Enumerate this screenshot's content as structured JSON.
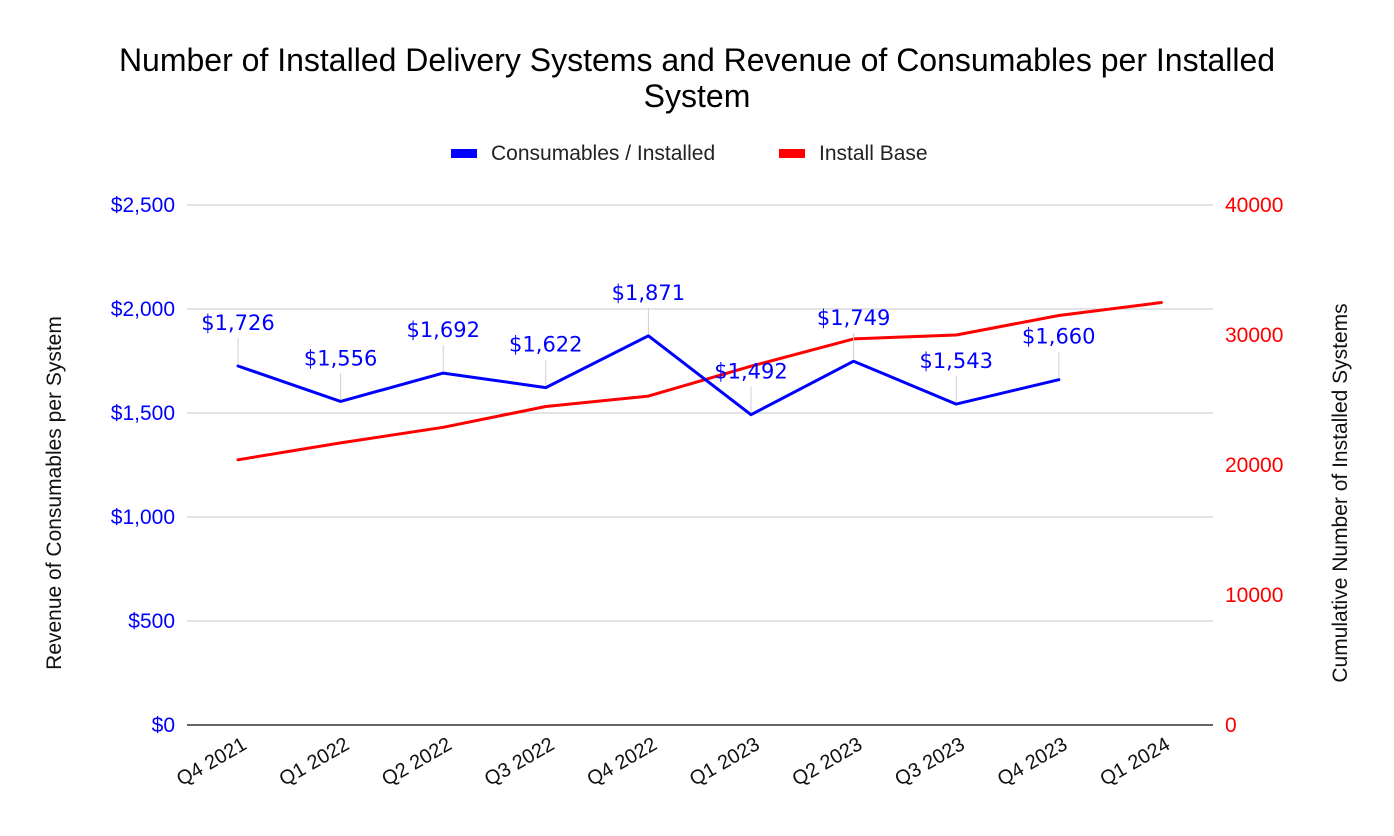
{
  "chart_data": {
    "type": "line",
    "title_line1": "Number of Installed Delivery Systems and Revenue of Consumables per Installed",
    "title_line2": "System",
    "categories": [
      "Q4 2021",
      "Q1 2022",
      "Q2 2022",
      "Q3 2022",
      "Q4 2022",
      "Q1 2023",
      "Q2 2023",
      "Q3 2023",
      "Q4 2023",
      "Q1 2024"
    ],
    "y_left": {
      "label": "Revenue of Consumables per System",
      "range": [
        0,
        2500
      ],
      "ticks": [
        0,
        500,
        1000,
        1500,
        2000,
        2500
      ],
      "tick_labels": [
        "$0",
        "$500",
        "$1,000",
        "$1,500",
        "$2,000",
        "$2,500"
      ],
      "color": "#0000ff"
    },
    "y_right": {
      "label": "Cumulative Number of Installed Systems",
      "range": [
        0,
        40000
      ],
      "ticks": [
        0,
        10000,
        20000,
        30000,
        40000
      ],
      "tick_labels": [
        "0",
        "10000",
        "20000",
        "30000",
        "40000"
      ],
      "color": "#ff0000"
    },
    "legend_position": "top-center",
    "grid": true,
    "series": [
      {
        "name": "Consumables / Installed",
        "axis": "left",
        "color": "#0000ff",
        "values": [
          1726,
          1556,
          1692,
          1622,
          1871,
          1492,
          1749,
          1543,
          1660,
          null
        ],
        "data_labels": [
          "$1,726",
          "$1,556",
          "$1,692",
          "$1,622",
          "$1,871",
          "$1,492",
          "$1,749",
          "$1,543",
          "$1,660",
          null
        ]
      },
      {
        "name": "Install Base",
        "axis": "right",
        "color": "#ff0000",
        "values": [
          20400,
          21700,
          22900,
          24500,
          25300,
          27600,
          29700,
          30000,
          31500,
          32500
        ]
      }
    ]
  }
}
